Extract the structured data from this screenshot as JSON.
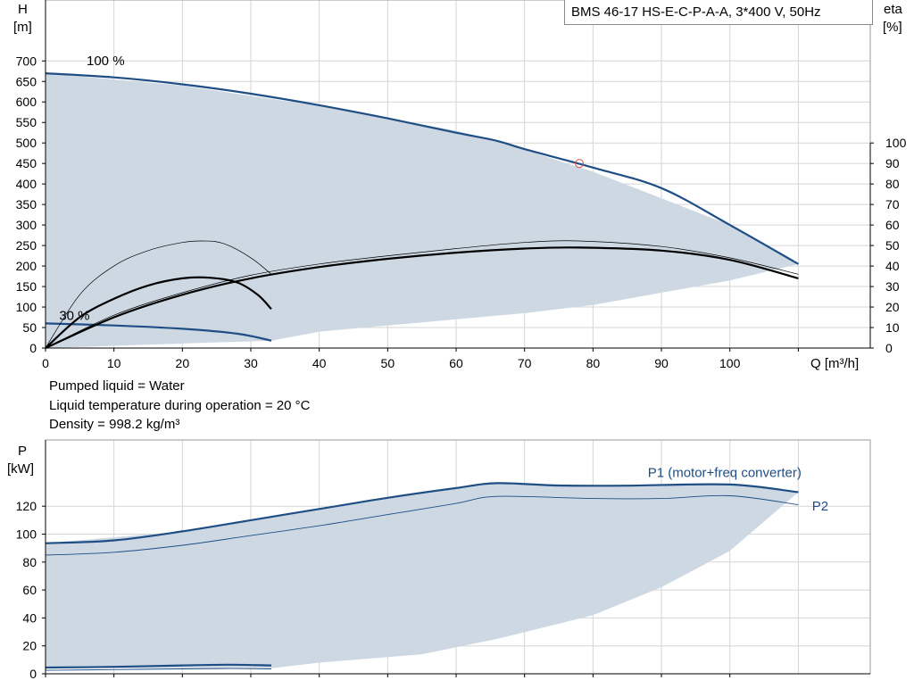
{
  "title": "BMS 46-17 HS-E-C-P-A-A, 3*400 V, 50Hz",
  "info_lines": [
    "Pumped liquid = Water",
    "Liquid temperature during operation = 20 °C",
    "Density = 998.2 kg/m³"
  ],
  "colors": {
    "envelope": "#cdd8e3",
    "curve_blue": "#1f4e85",
    "curve_black": "#000000",
    "operating_point": "#e05050"
  },
  "chart_data": [
    {
      "type": "line",
      "name": "head-efficiency",
      "xlabel": "Q [m³/h]",
      "ylabel_left": [
        "H",
        "[m]"
      ],
      "ylabel_right": [
        "eta",
        "[%]"
      ],
      "xlim": [
        0,
        120
      ],
      "ylim_left": [
        0,
        700
      ],
      "ylim_right": [
        0,
        100
      ],
      "x_ticks": [
        0,
        10,
        20,
        30,
        40,
        50,
        60,
        70,
        80,
        90,
        100
      ],
      "y_ticks_left": [
        0,
        50,
        100,
        150,
        200,
        250,
        300,
        350,
        400,
        450,
        500,
        550,
        600,
        650,
        700
      ],
      "y_ticks_right": [
        0,
        10,
        20,
        30,
        40,
        50,
        60,
        70,
        80,
        90,
        100
      ],
      "grid": true,
      "speed_labels": [
        {
          "text": "100 %",
          "x": 6,
          "y": 690
        },
        {
          "text": "30 %",
          "x": 2,
          "y": 68
        }
      ],
      "envelope": [
        [
          0,
          670
        ],
        [
          20,
          640
        ],
        [
          40,
          590
        ],
        [
          60,
          530
        ],
        [
          66,
          505
        ],
        [
          80,
          430
        ],
        [
          100,
          300
        ],
        [
          110,
          205
        ],
        [
          100,
          165
        ],
        [
          80,
          105
        ],
        [
          70,
          85
        ],
        [
          60,
          70
        ],
        [
          40,
          40
        ],
        [
          33,
          18
        ],
        [
          0,
          0
        ]
      ],
      "series": [
        {
          "axis": "left",
          "color": "#1f4e85",
          "width": 2.2,
          "points": [
            [
              0,
              670
            ],
            [
              10,
              660
            ],
            [
              20,
              643
            ],
            [
              30,
              620
            ],
            [
              40,
              592
            ],
            [
              50,
              560
            ],
            [
              60,
              525
            ],
            [
              66,
              505
            ],
            [
              70,
              485
            ],
            [
              80,
              440
            ],
            [
              90,
              390
            ],
            [
              100,
              300
            ],
            [
              110,
              205
            ]
          ]
        },
        {
          "axis": "left",
          "color": "#1f4e85",
          "width": 2.2,
          "points": [
            [
              0,
              60
            ],
            [
              10,
              55
            ],
            [
              20,
              47
            ],
            [
              28,
              35
            ],
            [
              33,
              18
            ]
          ]
        },
        {
          "axis": "right",
          "color": "#000000",
          "width": 2.2,
          "points": [
            [
              0,
              0
            ],
            [
              5,
              15
            ],
            [
              10,
              24
            ],
            [
              15,
              30.5
            ],
            [
              20,
              34
            ],
            [
              24,
              34.3
            ],
            [
              28,
              32
            ],
            [
              31,
              26
            ],
            [
              33,
              19
            ]
          ]
        },
        {
          "axis": "right",
          "color": "#000000",
          "width": 0.7,
          "points": [
            [
              0,
              0
            ],
            [
              5,
              26
            ],
            [
              10,
              40
            ],
            [
              15,
              47.5
            ],
            [
              20,
              51.5
            ],
            [
              23,
              52.2
            ],
            [
              26,
              51
            ],
            [
              30,
              44
            ],
            [
              33,
              36
            ]
          ]
        },
        {
          "axis": "right",
          "color": "#000000",
          "width": 2.2,
          "points": [
            [
              0,
              0
            ],
            [
              10,
              15
            ],
            [
              20,
              26
            ],
            [
              30,
              34
            ],
            [
              40,
              39.5
            ],
            [
              50,
              43.5
            ],
            [
              60,
              46.5
            ],
            [
              70,
              48.5
            ],
            [
              78,
              49
            ],
            [
              90,
              47.5
            ],
            [
              100,
              43
            ],
            [
              110,
              34
            ]
          ]
        },
        {
          "axis": "right",
          "color": "#000000",
          "width": 0.7,
          "points": [
            [
              0,
              0
            ],
            [
              10,
              16
            ],
            [
              20,
              27
            ],
            [
              30,
              35.5
            ],
            [
              40,
              41
            ],
            [
              50,
              45
            ],
            [
              60,
              48.5
            ],
            [
              70,
              51.5
            ],
            [
              78,
              52.2
            ],
            [
              90,
              49.5
            ],
            [
              100,
              44
            ],
            [
              110,
              36
            ]
          ]
        }
      ],
      "operating_point": {
        "x": 78,
        "y": 450
      }
    },
    {
      "type": "line",
      "name": "power",
      "ylabel": [
        "P",
        "[kW]"
      ],
      "xlim": [
        0,
        120
      ],
      "ylim": [
        0,
        140
      ],
      "y_ticks": [
        0,
        20,
        40,
        60,
        80,
        100,
        120
      ],
      "grid": true,
      "envelope": [
        [
          0,
          93.5
        ],
        [
          20,
          102
        ],
        [
          40,
          118
        ],
        [
          60,
          133
        ],
        [
          66,
          136.5
        ],
        [
          80,
          135
        ],
        [
          100,
          136
        ],
        [
          110,
          130
        ],
        [
          100,
          88
        ],
        [
          90,
          62
        ],
        [
          80,
          42
        ],
        [
          66,
          25
        ],
        [
          55,
          14
        ],
        [
          40,
          8
        ],
        [
          33,
          4
        ],
        [
          0,
          4
        ]
      ],
      "series": [
        {
          "name": "P1 (motor+freq converter)",
          "color": "#1f4e85",
          "width": 2.2,
          "points": [
            [
              0,
              93.5
            ],
            [
              10,
              95.5
            ],
            [
              20,
              102
            ],
            [
              30,
              110
            ],
            [
              40,
              118
            ],
            [
              50,
              126
            ],
            [
              60,
              133
            ],
            [
              66,
              136.5
            ],
            [
              75,
              134.8
            ],
            [
              85,
              134.7
            ],
            [
              100,
              135.5
            ],
            [
              110,
              130
            ]
          ]
        },
        {
          "name": "P2",
          "color": "#1f4e85",
          "width": 0.9,
          "points": [
            [
              0,
              85
            ],
            [
              10,
              87
            ],
            [
              20,
              92
            ],
            [
              30,
              99
            ],
            [
              40,
              106
            ],
            [
              50,
              114
            ],
            [
              60,
              122
            ],
            [
              66,
              127
            ],
            [
              80,
              125.5
            ],
            [
              90,
              125.5
            ],
            [
              100,
              127.5
            ],
            [
              110,
              121
            ]
          ]
        },
        {
          "color": "#1f4e85",
          "width": 2.2,
          "points": [
            [
              0,
              4.5
            ],
            [
              10,
              5
            ],
            [
              20,
              6
            ],
            [
              27,
              6.5
            ],
            [
              33,
              6
            ]
          ]
        },
        {
          "color": "#1f4e85",
          "width": 0.9,
          "points": [
            [
              0,
              2.5
            ],
            [
              10,
              3
            ],
            [
              20,
              3.5
            ],
            [
              27,
              3.8
            ],
            [
              33,
              3.5
            ]
          ]
        }
      ],
      "series_labels": [
        {
          "text": "P1 (motor+freq converter)",
          "x": 88,
          "y": 141
        },
        {
          "text": "P2",
          "x": 112,
          "y": 117
        }
      ]
    }
  ]
}
